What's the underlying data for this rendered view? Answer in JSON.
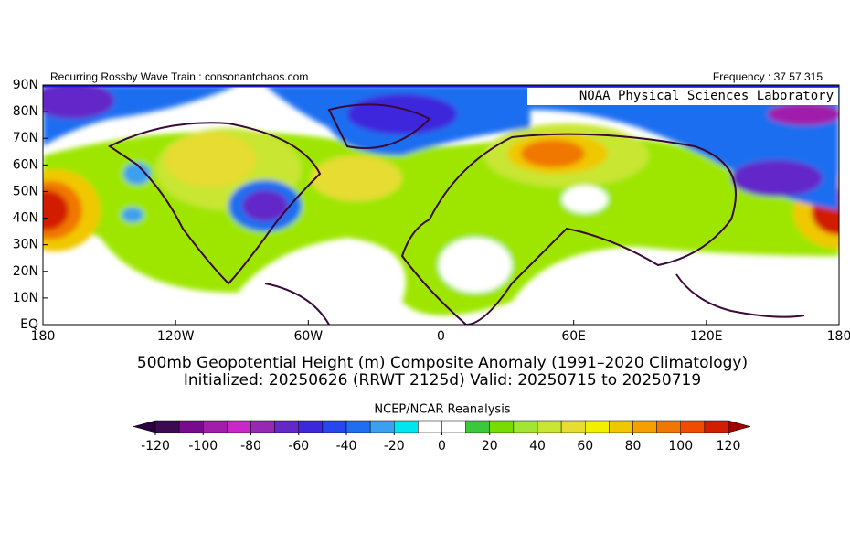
{
  "header": {
    "left": "Recurring Rossby Wave Train : consonantchaos.com",
    "right": "Frequency : 37 57 315",
    "lab": "NOAA Physical Sciences Laboratory"
  },
  "map": {
    "lat_ticks": [
      "90N",
      "80N",
      "70N",
      "60N",
      "50N",
      "40N",
      "30N",
      "20N",
      "10N",
      "EQ"
    ],
    "lon_ticks": [
      "180",
      "120W",
      "60W",
      "0",
      "60E",
      "120E",
      "180"
    ]
  },
  "title": {
    "line1": "500mb Geopotential Height (m) Composite Anomaly (1991–2020 Climatology)",
    "line2": "Initialized: 20250626 (RRWT 2125d) Valid: 20250715 to 20250719"
  },
  "colorbar": {
    "source": "NCEP/NCAR Reanalysis",
    "ticks": [
      -120,
      -100,
      -80,
      -60,
      -40,
      -20,
      0,
      20,
      40,
      60,
      80,
      100,
      120
    ],
    "under_color": "#2a0040",
    "over_color": "#a00000",
    "colors": [
      "#3c0a50",
      "#780a8c",
      "#a01eaa",
      "#c828c8",
      "#9628b4",
      "#6428c8",
      "#3c28dc",
      "#2846f0",
      "#1e6ef0",
      "#3c9ff0",
      "#00e6f0",
      "#ffffff",
      "#ffffff",
      "#3cc83c",
      "#78dc00",
      "#a0e632",
      "#c8e632",
      "#e6dc32",
      "#f0f000",
      "#f0c800",
      "#f5a000",
      "#f07800",
      "#f04b00",
      "#d21e00"
    ]
  }
}
